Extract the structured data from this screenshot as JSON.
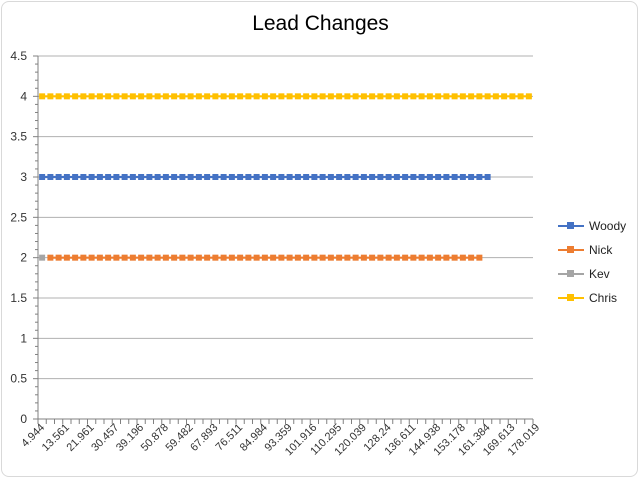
{
  "chart_data": {
    "type": "line",
    "title": "Lead Changes",
    "xlabel": "",
    "ylabel": "",
    "ylim": [
      0,
      4.5
    ],
    "yticks": [
      "0",
      "0.5",
      "1",
      "1.5",
      "2",
      "2.5",
      "3",
      "3.5",
      "4",
      "4.5"
    ],
    "ytick_values": [
      0,
      0.5,
      1,
      1.5,
      2,
      2.5,
      3,
      3.5,
      4,
      4.5
    ],
    "xtick_labels": [
      "4.944",
      "13.561",
      "21.961",
      "30.457",
      "39.196",
      "50.878",
      "59.482",
      "67.893",
      "76.511",
      "84.984",
      "93.359",
      "101.916",
      "110.295",
      "120.039",
      "128.24",
      "136.611",
      "144.938",
      "153.178",
      "161.384",
      "169.613",
      "178.019"
    ],
    "x_categories_count": 60,
    "grid": true,
    "legend_position": "right",
    "series": [
      {
        "name": "Woody",
        "color": "#4472C4",
        "value": 3,
        "start_index": 0,
        "end_index": 54
      },
      {
        "name": "Nick",
        "color": "#ED7D31",
        "value": 2,
        "start_index": 1,
        "end_index": 53
      },
      {
        "name": "Kev",
        "color": "#A5A5A5",
        "value": 2,
        "start_index": 0,
        "end_index": 0
      },
      {
        "name": "Chris",
        "color": "#FFC000",
        "value": 4,
        "start_index": 0,
        "end_index": 59
      }
    ]
  }
}
